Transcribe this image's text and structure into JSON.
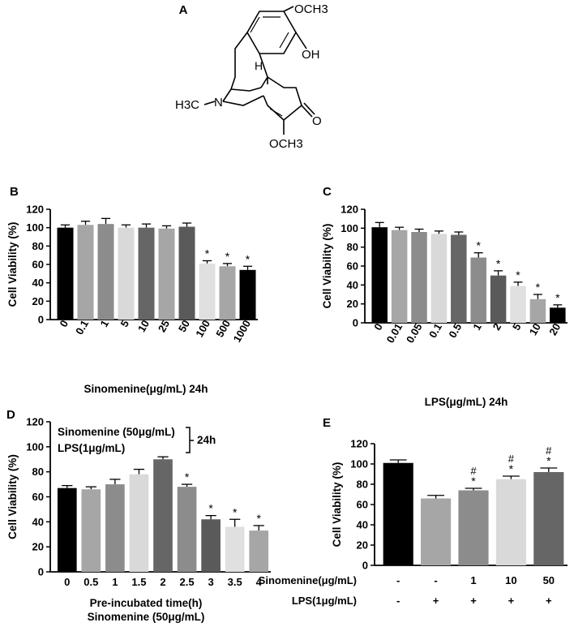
{
  "panel_labels": {
    "A": "A",
    "B": "B",
    "C": "C",
    "D": "D",
    "E": "E"
  },
  "structure": {
    "och3_top": "OCH3",
    "oh": "OH",
    "h_label": "H",
    "n_label": "N",
    "h3c": "H3C",
    "o_label": "O",
    "och3_bottom": "OCH3"
  },
  "chart_data": [
    {
      "id": "B",
      "type": "bar",
      "ylabel": "Cell Viability (%)",
      "xlabel": "Sinomenine(μg/mL) 24h",
      "ylim": [
        0,
        120
      ],
      "yticks": [
        0,
        20,
        40,
        60,
        80,
        100,
        120
      ],
      "categories": [
        "0",
        "0.1",
        "1",
        "5",
        "10",
        "25",
        "50",
        "100",
        "500",
        "1000"
      ],
      "values": [
        100,
        103,
        104,
        100,
        100,
        99,
        101,
        61,
        58,
        54
      ],
      "errors": [
        3,
        4,
        6,
        3,
        4,
        3,
        4,
        3,
        3,
        4
      ],
      "significance": [
        "",
        "",
        "",
        "",
        "",
        "",
        "",
        "*",
        "*",
        "*"
      ],
      "colors": [
        "#000000",
        "#a6a6a6",
        "#8c8c8c",
        "#d9d9d9",
        "#666666",
        "#a6a6a6",
        "#5a5a5a",
        "#e0e0e0",
        "#a6a6a6",
        "#000000"
      ]
    },
    {
      "id": "C",
      "type": "bar",
      "ylabel": "Cell Viability (%)",
      "xlabel": "LPS(μg/mL) 24h",
      "ylim": [
        0,
        120
      ],
      "yticks": [
        0,
        20,
        40,
        60,
        80,
        100,
        120
      ],
      "categories": [
        "0",
        "0.01",
        "0.05",
        "0.1",
        "0.5",
        "1",
        "2",
        "5",
        "10",
        "20"
      ],
      "values": [
        101,
        98,
        96,
        94,
        93,
        69,
        50,
        39,
        25,
        16
      ],
      "errors": [
        5,
        3,
        3,
        3,
        3,
        5,
        5,
        4,
        5,
        3
      ],
      "significance": [
        "",
        "",
        "",
        "",
        "",
        "*",
        "*",
        "*",
        "*",
        "*"
      ],
      "colors": [
        "#000000",
        "#a6a6a6",
        "#8c8c8c",
        "#d9d9d9",
        "#666666",
        "#8c8c8c",
        "#5a5a5a",
        "#e0e0e0",
        "#a6a6a6",
        "#000000"
      ]
    },
    {
      "id": "D",
      "type": "bar",
      "ylabel": "Cell Viability (%)",
      "xlabel": "Pre-incubated time(h)",
      "xlabel2": "Sinomenine (50μg/mL)",
      "legend_line1": "Sinomenine (50μg/mL)",
      "legend_line2": "LPS(1μg/mL)",
      "legend_note": "24h",
      "ylim": [
        0,
        120
      ],
      "yticks": [
        0,
        20,
        40,
        60,
        80,
        100,
        120
      ],
      "categories": [
        "0",
        "0.5",
        "1",
        "1.5",
        "2",
        "2.5",
        "3",
        "3.5",
        "4"
      ],
      "values": [
        67,
        66,
        70,
        78,
        90,
        68,
        42,
        36,
        33
      ],
      "errors": [
        2,
        2,
        4,
        4,
        2,
        2,
        3,
        6,
        4
      ],
      "significance": [
        "",
        "",
        "",
        "",
        "",
        "*",
        "*",
        "*",
        "*"
      ],
      "colors": [
        "#000000",
        "#a6a6a6",
        "#8c8c8c",
        "#d9d9d9",
        "#666666",
        "#8c8c8c",
        "#5a5a5a",
        "#e0e0e0",
        "#a6a6a6"
      ]
    },
    {
      "id": "E",
      "type": "bar",
      "ylabel": "Cell Viability (%)",
      "ylim": [
        0,
        120
      ],
      "yticks": [
        0,
        20,
        40,
        60,
        80,
        100,
        120
      ],
      "row1_label": "Sinomenine(μg/mL)",
      "row2_label": "LPS(1μg/mL)",
      "row1": [
        "-",
        "-",
        "1",
        "10",
        "50"
      ],
      "row2": [
        "-",
        "+",
        "+",
        "+",
        "+"
      ],
      "values": [
        101,
        66,
        74,
        85,
        92
      ],
      "errors": [
        3,
        3,
        2,
        3,
        4
      ],
      "significance": [
        "",
        "",
        "*",
        "*",
        "*"
      ],
      "hash": [
        "",
        "",
        "#",
        "#",
        "#"
      ],
      "colors": [
        "#000000",
        "#a6a6a6",
        "#8c8c8c",
        "#d9d9d9",
        "#666666"
      ]
    }
  ]
}
